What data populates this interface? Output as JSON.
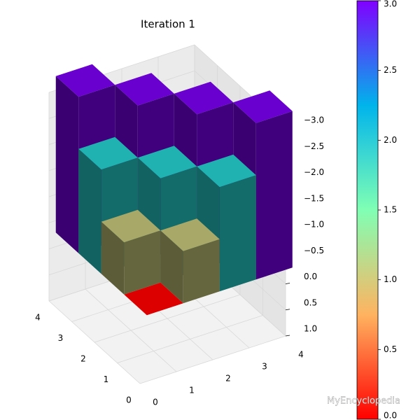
{
  "chart_data": {
    "type": "bar3d",
    "title": "Iteration 1",
    "bars": {
      "x": [
        3.5,
        2.5,
        1.5,
        0.5,
        2.5,
        1.5,
        0.5,
        1.5,
        0.5,
        0.5
      ],
      "y": [
        0.5,
        1.5,
        2.5,
        3.5,
        0.5,
        1.5,
        2.5,
        0.5,
        1.5,
        0.5
      ],
      "values": [
        -3,
        -3,
        -3,
        -3,
        -2,
        -2,
        -2,
        -1,
        -1,
        0
      ],
      "colors": [
        "#6a00d0",
        "#6a00d0",
        "#6a00d0",
        "#6a00d0",
        "#20b2b0",
        "#20b2b0",
        "#20b2b0",
        "#a8a868",
        "#a8a868",
        "#dd0000"
      ]
    },
    "xlim": [
      0,
      4
    ],
    "ylim": [
      0,
      4
    ],
    "zlim": [
      1,
      -3
    ],
    "xticks": [
      0,
      1,
      2,
      3,
      4
    ],
    "yticks": [
      0,
      1,
      2,
      3,
      4
    ],
    "zticks": [
      {
        "value": 1,
        "label": "1.0"
      },
      {
        "value": 0.5,
        "label": "0.5"
      },
      {
        "value": 0,
        "label": "0.0"
      },
      {
        "value": -0.5,
        "label": "−0.5"
      },
      {
        "value": -1,
        "label": "−1.0"
      },
      {
        "value": -1.5,
        "label": "−1.5"
      },
      {
        "value": -2,
        "label": "−2.0"
      },
      {
        "value": -2.5,
        "label": "−2.5"
      },
      {
        "value": -3,
        "label": "−3.0"
      }
    ],
    "grid": true,
    "colorbar": {
      "lim": [
        0,
        3
      ],
      "ticks": [
        {
          "value": 0,
          "label": "0.0"
        },
        {
          "value": 0.5,
          "label": "0.5"
        },
        {
          "value": 1,
          "label": "1.0"
        },
        {
          "value": 1.5,
          "label": "1.5"
        },
        {
          "value": 2,
          "label": "2.0"
        },
        {
          "value": 2.5,
          "label": "2.5"
        },
        {
          "value": 3,
          "label": "3.0"
        }
      ]
    },
    "watermark": "MyEncyclopedia"
  }
}
